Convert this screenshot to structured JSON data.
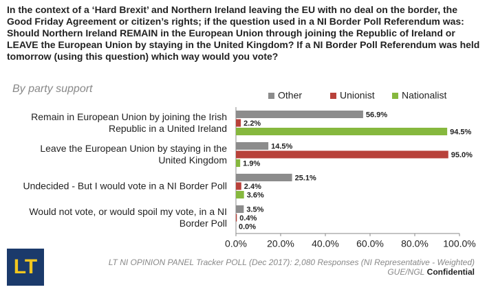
{
  "chart_data": {
    "type": "hbar",
    "title": "In the context of a ‘Hard Brexit’ and Northern Ireland leaving the EU with no deal on the border, the Good Friday Agreement or citizen’s rights; if the question used in a NI Border Poll Referendum was: Should Northern Ireland REMAIN in the European Union through joining the Republic of Ireland or LEAVE the European Union by staying in the United Kingdom? If a NI Border Poll Referendum was held tomorrow (using this question) which way would you vote?",
    "subtitle": "By party support",
    "categories": [
      "Remain in European Union by joining the Irish Republic in a United Ireland",
      "Leave the European Union by staying in the United Kingdom",
      "Undecided - But I would vote in a NI Border Poll",
      "Would not vote, or would spoil my vote, in a NI Border Poll"
    ],
    "series": [
      {
        "name": "Other",
        "color": "#8c8c8c",
        "values": [
          56.9,
          14.5,
          25.1,
          3.5
        ],
        "value_labels": [
          "56.9%",
          "14.5%",
          "25.1%",
          "3.5%"
        ]
      },
      {
        "name": "Unionist",
        "color": "#b8413a",
        "values": [
          2.2,
          95.0,
          2.4,
          0.4
        ],
        "value_labels": [
          "2.2%",
          "95.0%",
          "2.4%",
          "0.4%"
        ]
      },
      {
        "name": "Nationalist",
        "color": "#86b83e",
        "values": [
          94.5,
          1.9,
          3.6,
          0.0
        ],
        "value_labels": [
          "94.5%",
          "1.9%",
          "3.6%",
          "0.0%"
        ]
      }
    ],
    "xlim": [
      0,
      100
    ],
    "xticks": [
      {
        "value": 0,
        "label": "0.0%"
      },
      {
        "value": 20,
        "label": "20.0%"
      },
      {
        "value": 40,
        "label": "40.0%"
      },
      {
        "value": 60,
        "label": "60.0%"
      },
      {
        "value": 80,
        "label": "80.0%"
      },
      {
        "value": 100,
        "label": "100.0%"
      }
    ],
    "source": "LT NI OPINION PANEL Tracker POLL (Dec 2017): 2,080 Responses (NI Representative - Weighted)",
    "footer": "GUE/NGL",
    "footer_bold": "Confidential",
    "logo": "LT"
  }
}
